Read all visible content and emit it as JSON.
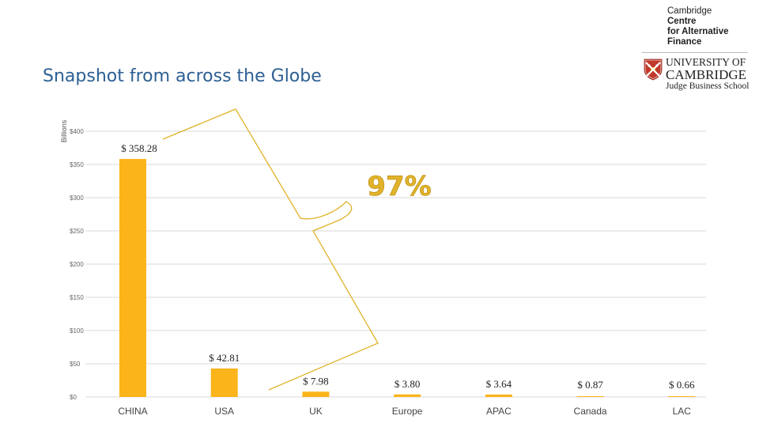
{
  "header": {
    "title": "Snapshot from across the Globe"
  },
  "logo": {
    "ccaf_line1": "Cambridge",
    "ccaf_line2": "Centre",
    "ccaf_line3": "for Alternative",
    "ccaf_line4": "Finance",
    "uni_line1": "UNIVERSITY OF",
    "uni_line2": "CAMBRIDGE",
    "uni_line3": "Judge Business School"
  },
  "colors": {
    "bar": "#FBB41A",
    "title": "#2d5f93",
    "callout": "#E0B32A",
    "grid": "#d9d9d9"
  },
  "callout": {
    "text": "97%"
  },
  "chart_data": {
    "type": "bar",
    "ylabel": "Billions",
    "ylim": [
      0,
      400
    ],
    "y_ticks": [
      0,
      50,
      100,
      150,
      200,
      250,
      300,
      350,
      400
    ],
    "y_tick_labels": [
      "$0",
      "$50",
      "$100",
      "$150",
      "$200",
      "$250",
      "$300",
      "$350",
      "$400"
    ],
    "grid": true,
    "categories": [
      "CHINA",
      "USA",
      "UK",
      "Europe",
      "APAC",
      "Canada",
      "LAC"
    ],
    "values": [
      358.28,
      42.81,
      7.98,
      3.8,
      3.64,
      0.87,
      0.66
    ],
    "data_labels": [
      "$ 358.28",
      "$ 42.81",
      "$ 7.98",
      "$ 3.80",
      "$ 3.64",
      "$ 0.87",
      "$ 0.66"
    ]
  }
}
